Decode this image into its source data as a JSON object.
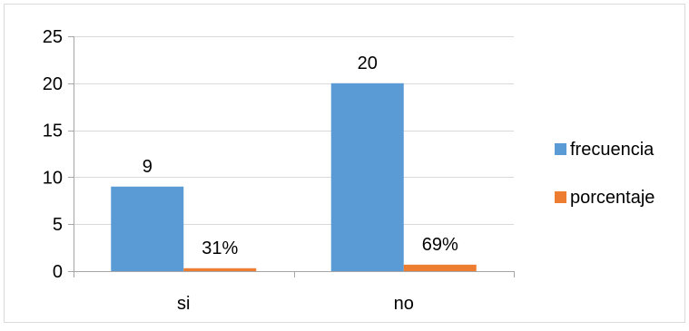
{
  "chart_data": {
    "type": "bar",
    "categories": [
      "si",
      "no"
    ],
    "series": [
      {
        "name": "frecuencia",
        "values": [
          9,
          20
        ],
        "labels": [
          "9",
          "20"
        ],
        "color": "#5b9bd5"
      },
      {
        "name": "porcentaje",
        "values": [
          0.31,
          0.69
        ],
        "labels": [
          "31%",
          "69%"
        ],
        "color": "#ed7d31"
      }
    ],
    "ylim": [
      0,
      25
    ],
    "yticks": [
      0,
      5,
      10,
      15,
      20,
      25
    ],
    "grid": true,
    "legend": "right",
    "title": "",
    "xlabel": "",
    "ylabel": ""
  }
}
